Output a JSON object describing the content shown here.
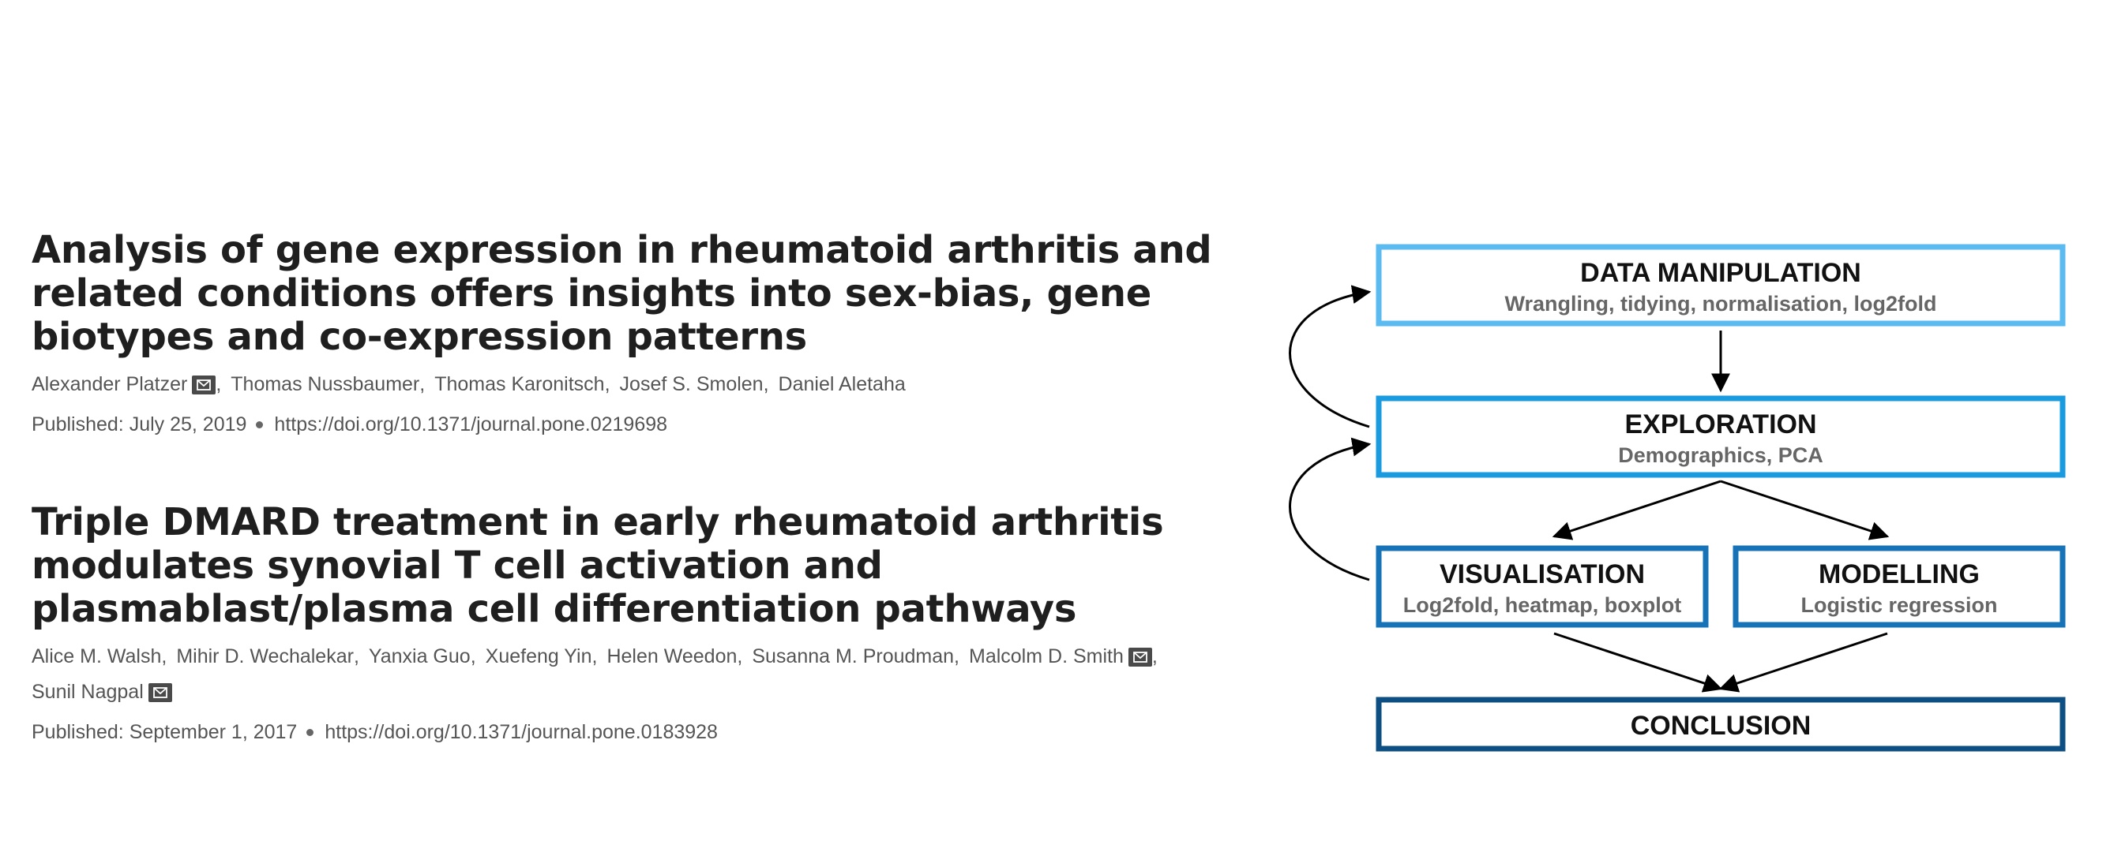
{
  "articles": [
    {
      "title_lines": [
        "Analysis of gene expression in rheumatoid arthritis and",
        "related conditions offers insights into sex-bias, gene",
        "biotypes and co-expression patterns"
      ],
      "authors": [
        {
          "name": "Alexander Platzer",
          "email_icon": true,
          "sep": ","
        },
        {
          "name": "Thomas Nussbaumer",
          "email_icon": false,
          "sep": ","
        },
        {
          "name": "Thomas Karonitsch",
          "email_icon": false,
          "sep": ","
        },
        {
          "name": "Josef S. Smolen",
          "email_icon": false,
          "sep": ","
        },
        {
          "name": "Daniel Aletaha",
          "email_icon": false,
          "sep": ""
        }
      ],
      "published": "Published: July 25, 2019",
      "doi": "https://doi.org/10.1371/journal.pone.0219698"
    },
    {
      "title_lines": [
        "Triple DMARD treatment in early rheumatoid arthritis",
        "modulates synovial T cell activation and",
        "plasmablast/plasma cell differentiation pathways"
      ],
      "authors": [
        {
          "name": "Alice M. Walsh",
          "email_icon": false,
          "sep": ","
        },
        {
          "name": "Mihir D. Wechalekar",
          "email_icon": false,
          "sep": ","
        },
        {
          "name": "Yanxia Guo",
          "email_icon": false,
          "sep": ","
        },
        {
          "name": "Xuefeng Yin",
          "email_icon": false,
          "sep": ","
        },
        {
          "name": "Helen Weedon",
          "email_icon": false,
          "sep": ","
        },
        {
          "name": "Susanna M. Proudman",
          "email_icon": false,
          "sep": ","
        },
        {
          "name": "Malcolm D. Smith",
          "email_icon": true,
          "sep": ","
        },
        {
          "name": "Sunil Nagpal",
          "email_icon": true,
          "sep": ""
        }
      ],
      "published": "Published: September 1, 2017",
      "doi": "https://doi.org/10.1371/journal.pone.0183928"
    }
  ],
  "diagram": {
    "boxes": [
      {
        "id": "data-manipulation",
        "title": "DATA MANIPULATION",
        "subtitle": "Wrangling, tidying, normalisation, log2fold",
        "color": "#5bbbf0"
      },
      {
        "id": "exploration",
        "title": "EXPLORATION",
        "subtitle": "Demographics, PCA",
        "color": "#1a9be0"
      },
      {
        "id": "visualisation",
        "title": "VISUALISATION",
        "subtitle": "Log2fold, heatmap, boxplot",
        "color": "#1673b8"
      },
      {
        "id": "modelling",
        "title": "MODELLING",
        "subtitle": "Logistic regression",
        "color": "#1673b8"
      },
      {
        "id": "conclusion",
        "title": "CONCLUSION",
        "subtitle": "",
        "color": "#0d4f82"
      }
    ]
  }
}
